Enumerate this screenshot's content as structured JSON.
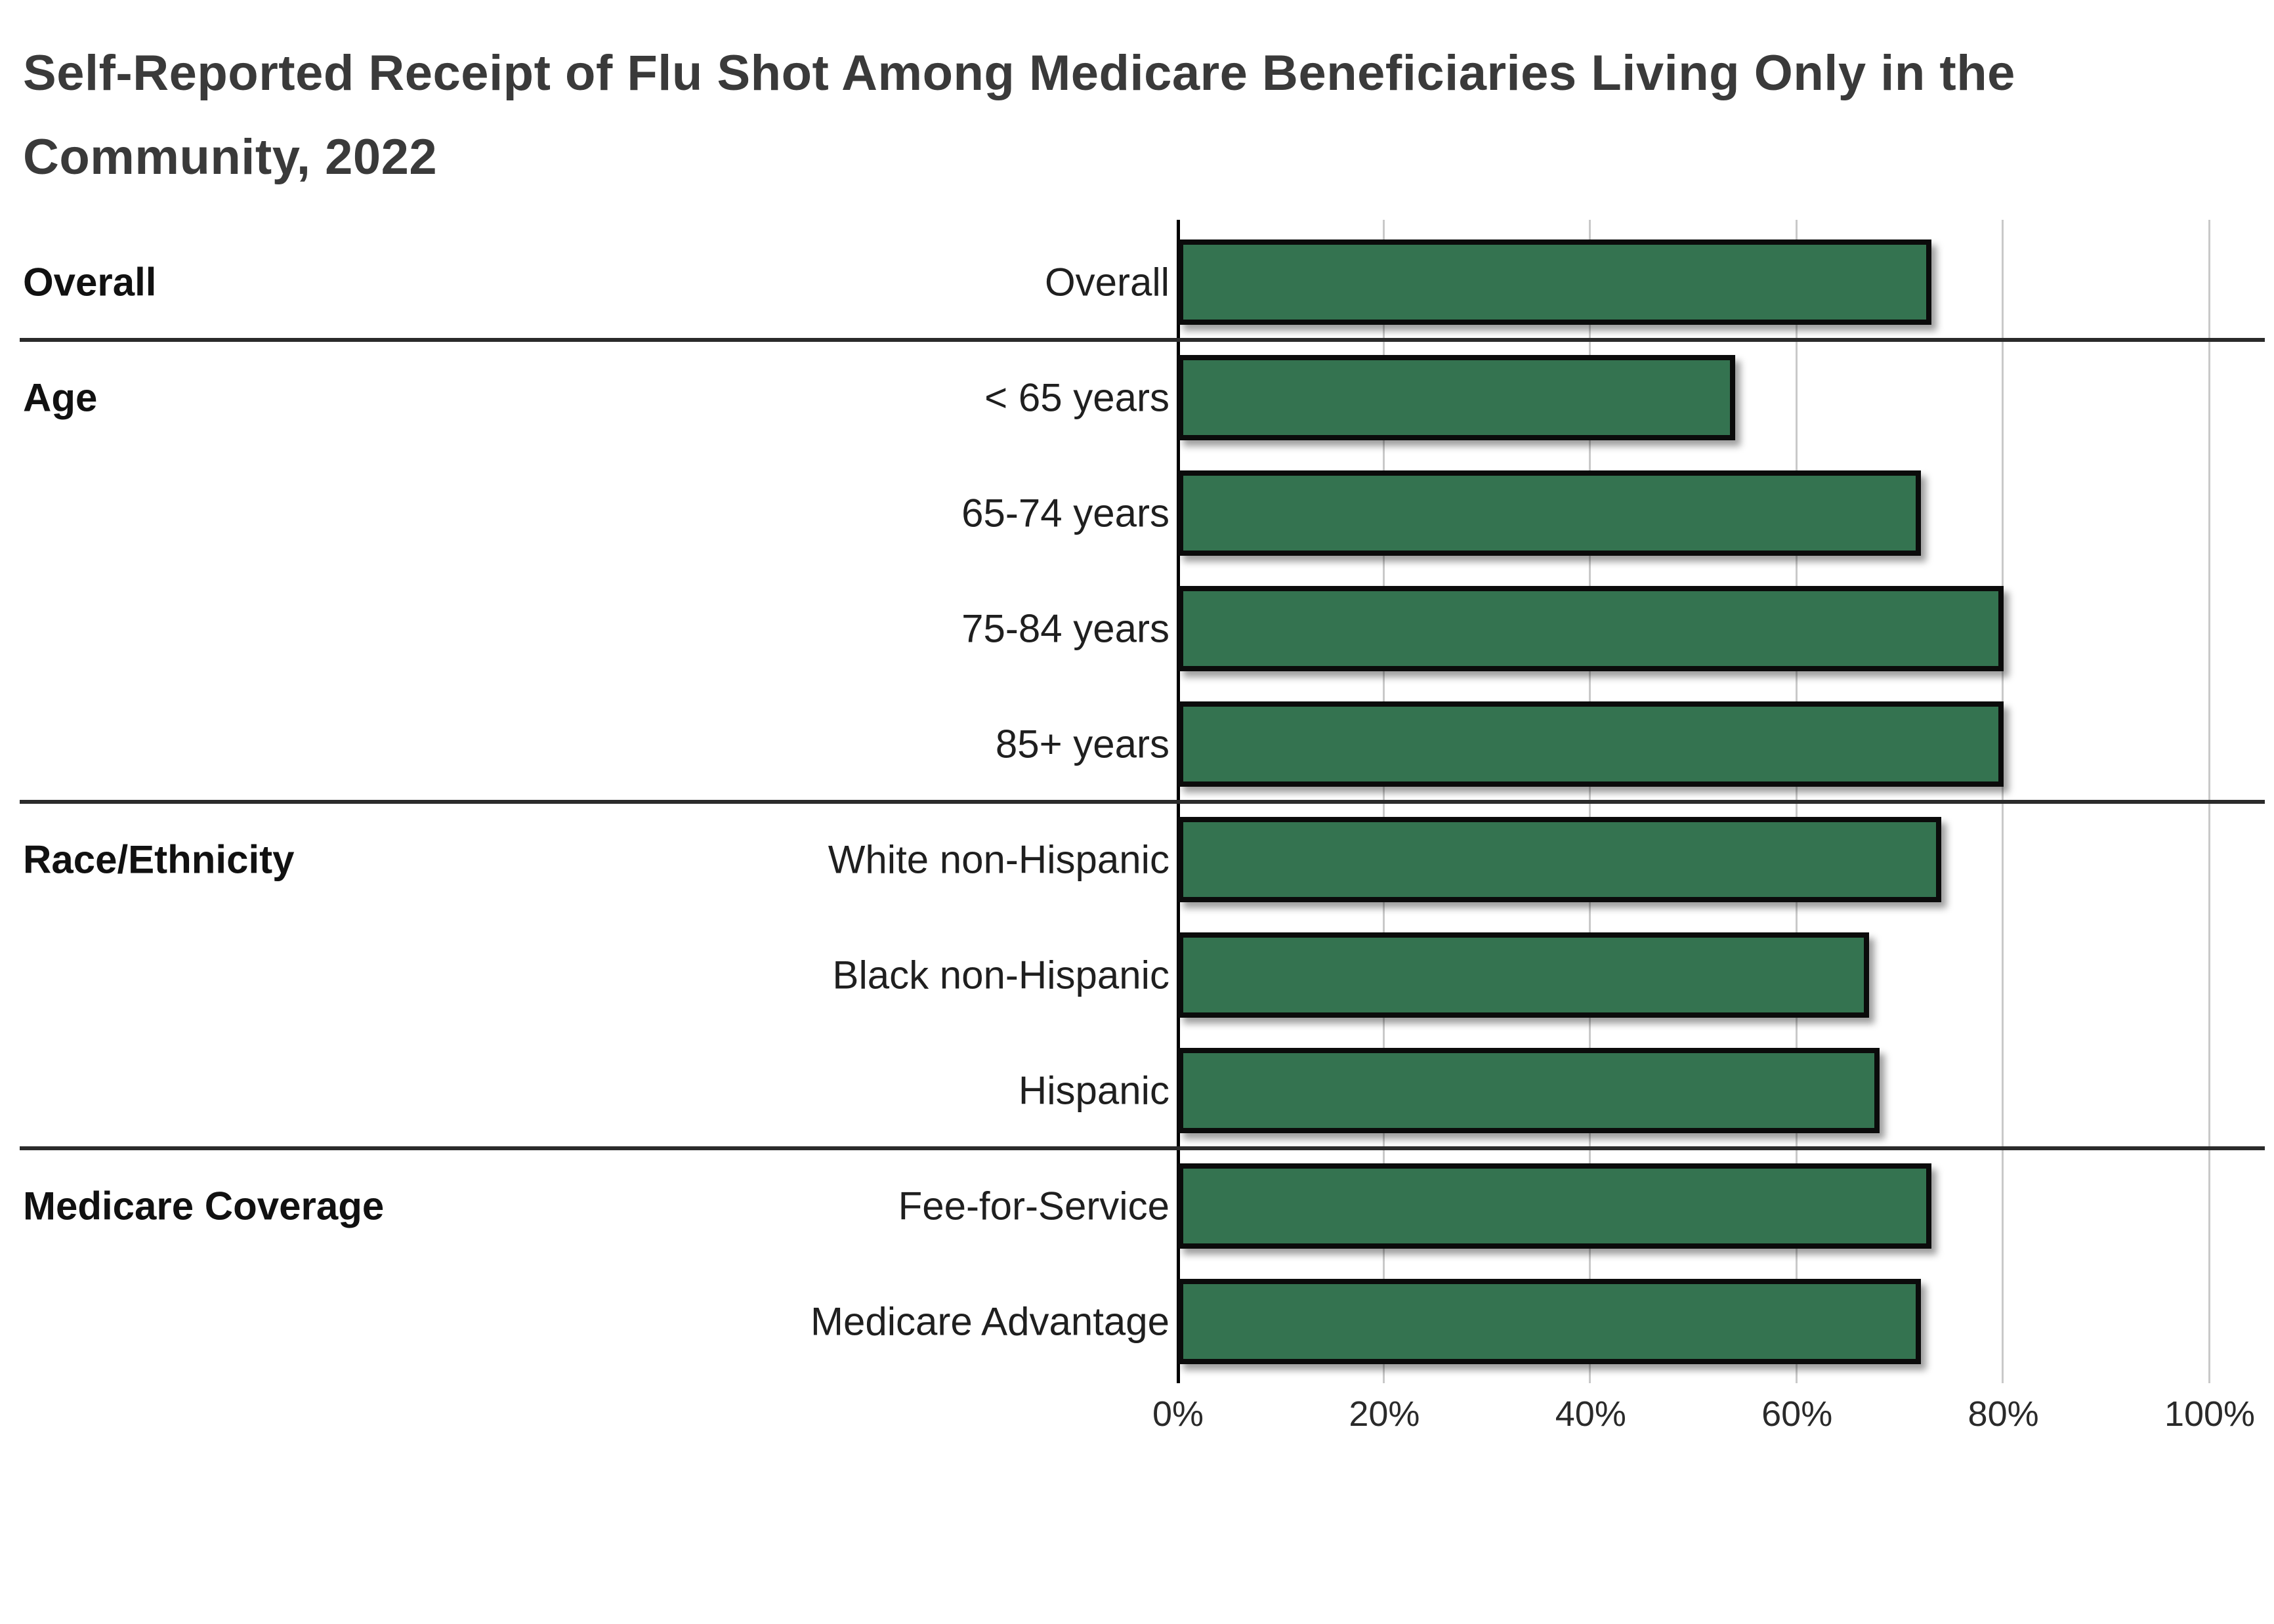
{
  "title": "Self-Reported Receipt of Flu Shot Among Medicare Beneficiaries Living Only in the Community, 2022",
  "colors": {
    "bar_fill": "#347350",
    "bar_border": "#0b0b0b",
    "gridline": "#c9c9c9",
    "axis": "#000000",
    "separator": "#2b2b2b",
    "title_text": "#3a3a3a",
    "label_text": "#1f1f1f"
  },
  "chart_data": {
    "type": "bar",
    "orientation": "horizontal",
    "title": "Self-Reported Receipt of Flu Shot Among Medicare Beneficiaries Living Only in the Community, 2022",
    "xlabel": "",
    "ylabel": "",
    "unit": "%",
    "xlim": [
      0,
      100
    ],
    "x_tick_values": [
      0,
      20,
      40,
      60,
      80,
      100
    ],
    "x_tick_labels": [
      "0%",
      "20%",
      "40%",
      "60%",
      "80%",
      "100%"
    ],
    "grid": true,
    "legend": false,
    "groups": [
      {
        "label": "Overall",
        "rows": [
          {
            "category": "Overall",
            "value": 73
          }
        ]
      },
      {
        "label": "Age",
        "rows": [
          {
            "category": "< 65 years",
            "value": 54
          },
          {
            "category": "65-74 years",
            "value": 72
          },
          {
            "category": "75-84 years",
            "value": 80
          },
          {
            "category": "85+ years",
            "value": 80
          }
        ]
      },
      {
        "label": "Race/Ethnicity",
        "rows": [
          {
            "category": "White non-Hispanic",
            "value": 74
          },
          {
            "category": "Black non-Hispanic",
            "value": 67
          },
          {
            "category": "Hispanic",
            "value": 68
          }
        ]
      },
      {
        "label": "Medicare Coverage",
        "rows": [
          {
            "category": "Fee-for-Service",
            "value": 73
          },
          {
            "category": "Medicare Advantage",
            "value": 72
          }
        ]
      }
    ]
  }
}
